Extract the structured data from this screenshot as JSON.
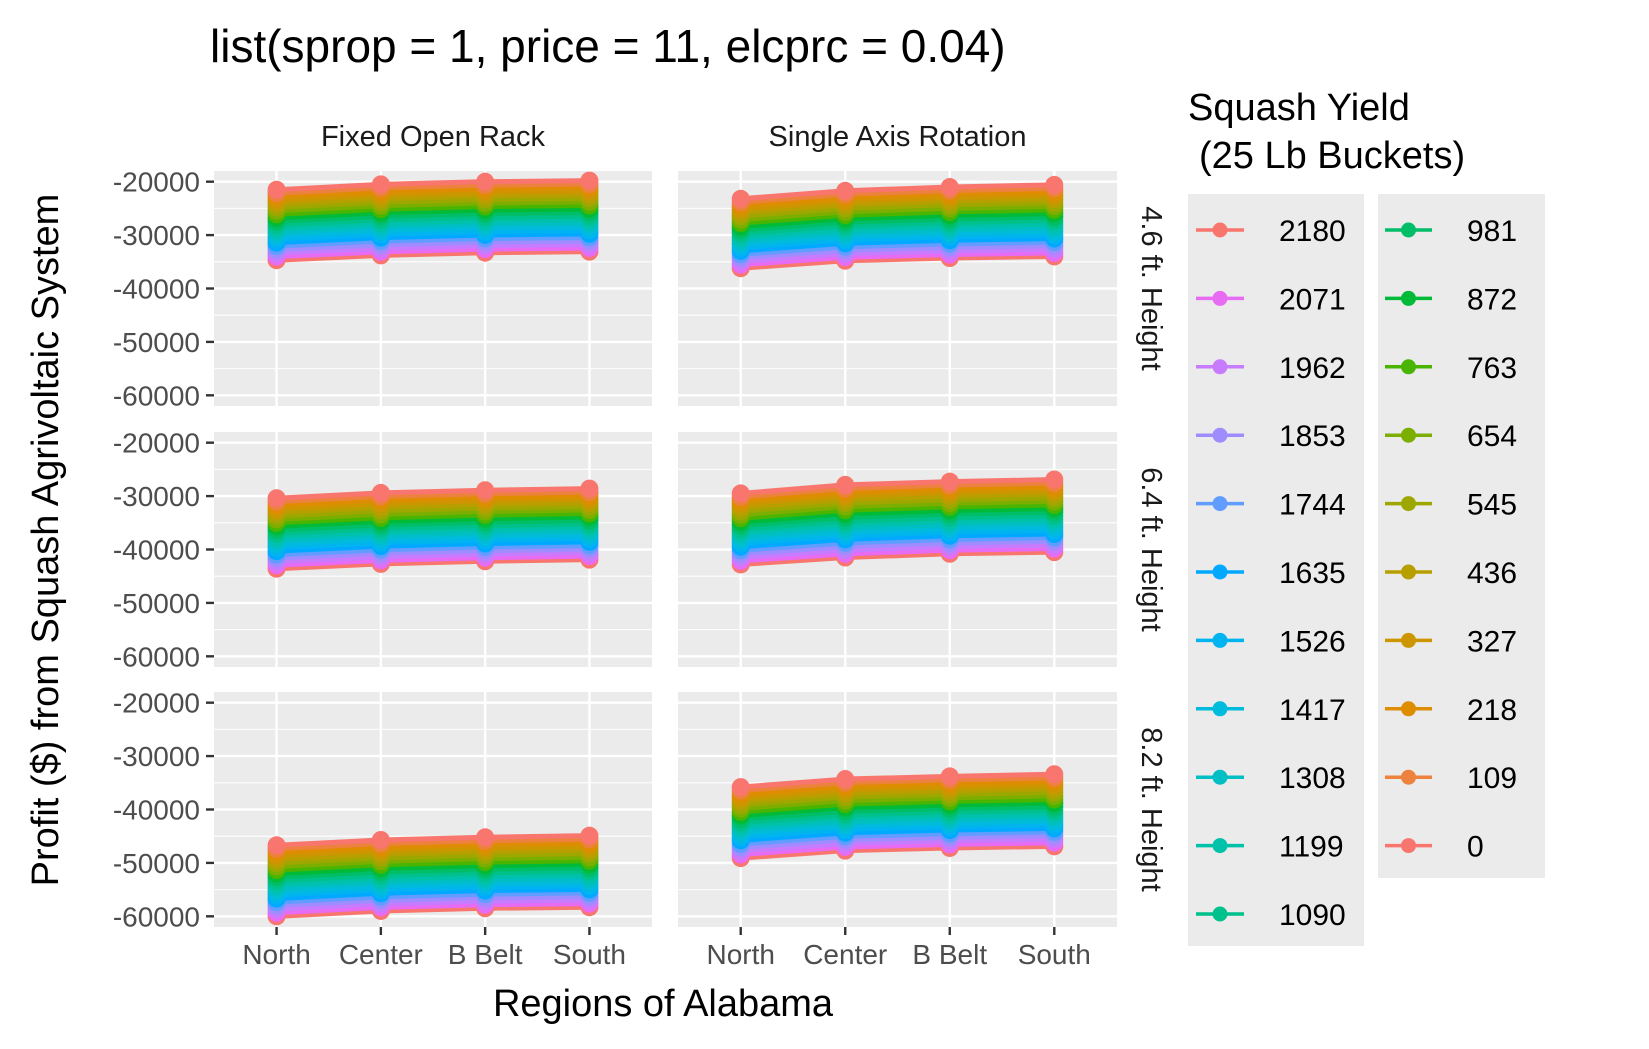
{
  "chart_data": {
    "type": "line",
    "title": "list(sprop = 1, price = 11, elcprc = 0.04)",
    "xlabel": "Regions of Alabama",
    "ylabel": "Profit ($) from Squash Agrivoltaic System",
    "categories": [
      "North",
      "Center",
      "B Belt",
      "South"
    ],
    "ylim": [
      -62000,
      -18000
    ],
    "y_ticks": [
      -60000,
      -50000,
      -40000,
      -30000,
      -20000
    ],
    "y_tick_labels": [
      "-60000",
      "-50000",
      "-40000",
      "-30000",
      "-20000"
    ],
    "grid": true,
    "legend": {
      "title_lines": [
        "Squash Yield",
        "(25 Lb Buckets)"
      ],
      "placement": "right"
    },
    "facet_cols": [
      "Fixed Open Rack",
      "Single Axis Rotation"
    ],
    "facet_rows": [
      "4.6 ft. Height",
      "6.4 ft. Height",
      "8.2 ft. Height"
    ],
    "yields": [
      2180,
      2071,
      1962,
      1853,
      1744,
      1635,
      1526,
      1417,
      1308,
      1199,
      1090,
      981,
      872,
      763,
      654,
      545,
      436,
      327,
      218,
      109,
      0
    ],
    "colors": [
      "#F8766D",
      "#ED813E",
      "#DE8C00",
      "#CD9600",
      "#B79F00",
      "#9DA700",
      "#7CAE00",
      "#49B500",
      "#00BA38",
      "#00BE67",
      "#00C08B",
      "#00C1AA",
      "#00BFC4",
      "#00BBDC",
      "#00B4F0",
      "#00A9FF",
      "#619CFF",
      "#9F8CFF",
      "#C77CFF",
      "#E76BF3",
      "#F8766D"
    ],
    "panels": [
      {
        "col": "Fixed Open Rack",
        "row": "4.6 ft. Height",
        "yield_2180": [
          -21500,
          -20500,
          -20000,
          -19800
        ],
        "yield_0": [
          -34700,
          -33800,
          -33300,
          -33100
        ]
      },
      {
        "col": "Single Axis Rotation",
        "row": "4.6 ft. Height",
        "yield_2180": [
          -23200,
          -21700,
          -21000,
          -20600
        ],
        "yield_0": [
          -36200,
          -34800,
          -34300,
          -34000
        ]
      },
      {
        "col": "Fixed Open Rack",
        "row": "6.4 ft. Height",
        "yield_2180": [
          -30400,
          -29400,
          -28900,
          -28600
        ],
        "yield_0": [
          -43600,
          -42700,
          -42200,
          -41900
        ]
      },
      {
        "col": "Single Axis Rotation",
        "row": "6.4 ft. Height",
        "yield_2180": [
          -29500,
          -27900,
          -27300,
          -26900
        ],
        "yield_0": [
          -42800,
          -41500,
          -40800,
          -40500
        ]
      },
      {
        "col": "Fixed Open Rack",
        "row": "8.2 ft. Height",
        "yield_2180": [
          -46700,
          -45700,
          -45200,
          -44900
        ],
        "yield_0": [
          -60000,
          -59000,
          -58500,
          -58300
        ]
      },
      {
        "col": "Single Axis Rotation",
        "row": "8.2 ft. Height",
        "yield_2180": [
          -35800,
          -34300,
          -33800,
          -33400
        ],
        "yield_0": [
          -49100,
          -47700,
          -47200,
          -46900
        ]
      }
    ]
  }
}
